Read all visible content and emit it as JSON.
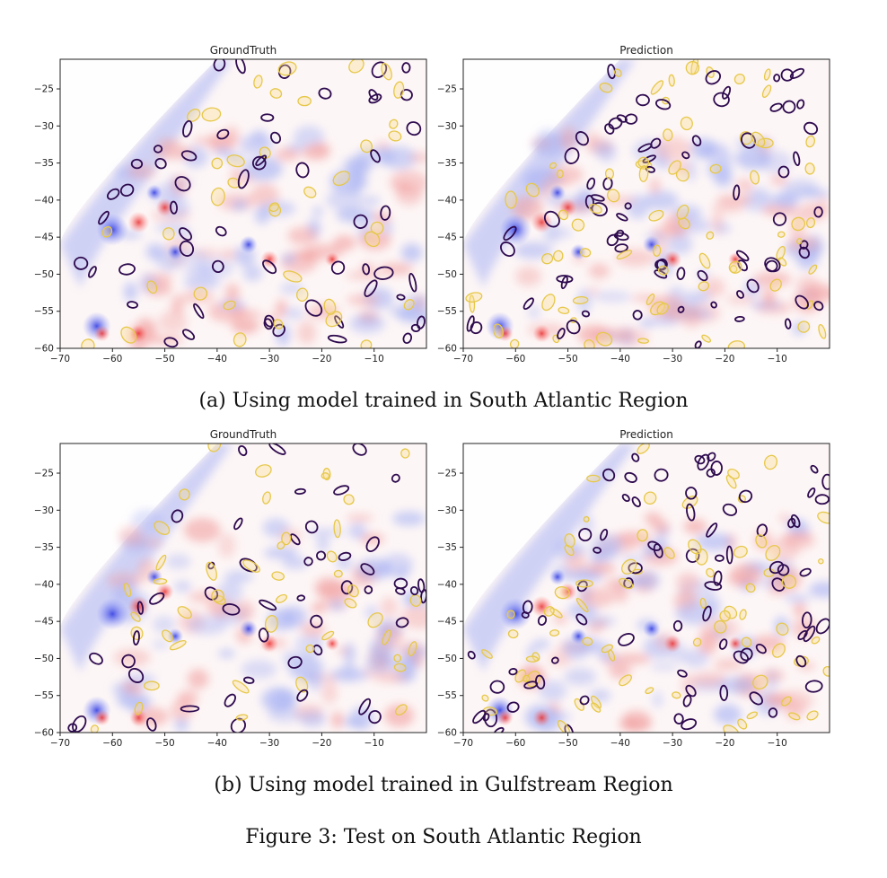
{
  "figure": {
    "subcaptions": [
      "(a) Using model trained in South Atlantic Region",
      "(b) Using model trained in Gulfstream Region"
    ],
    "caption": "Figure 3: Test on South Atlantic Region"
  },
  "chart_data": [
    {
      "type": "heatmap",
      "title": "GroundTruth",
      "xlabel": "",
      "ylabel": "",
      "xlim": [
        -70,
        0
      ],
      "ylim": [
        -60,
        -21
      ],
      "x_ticks": [
        -70,
        -60,
        -50,
        -40,
        -30,
        -20,
        -10
      ],
      "y_ticks": [
        -25,
        -30,
        -35,
        -40,
        -45,
        -50,
        -55,
        -60
      ],
      "contours": [
        "#2d0a4e",
        "#e6c84a"
      ],
      "colormap": [
        "#2233ee",
        "#ffffff",
        "#ee2222"
      ]
    },
    {
      "type": "heatmap",
      "title": "Prediction",
      "xlabel": "",
      "ylabel": "",
      "xlim": [
        -70,
        0
      ],
      "ylim": [
        -60,
        -21
      ],
      "x_ticks": [
        -70,
        -60,
        -50,
        -40,
        -30,
        -20,
        -10
      ],
      "y_ticks": [
        -25,
        -30,
        -35,
        -40,
        -45,
        -50,
        -55,
        -60
      ],
      "contours": [
        "#2d0a4e",
        "#e6c84a"
      ],
      "colormap": [
        "#2233ee",
        "#ffffff",
        "#ee2222"
      ]
    },
    {
      "type": "heatmap",
      "title": "GroundTruth",
      "xlabel": "",
      "ylabel": "",
      "xlim": [
        -70,
        0
      ],
      "ylim": [
        -60,
        -21
      ],
      "x_ticks": [
        -70,
        -60,
        -50,
        -40,
        -30,
        -20,
        -10
      ],
      "y_ticks": [
        -25,
        -30,
        -35,
        -40,
        -45,
        -50,
        -55,
        -60
      ],
      "contours": [
        "#2d0a4e",
        "#e6c84a"
      ],
      "colormap": [
        "#2233ee",
        "#ffffff",
        "#ee2222"
      ]
    },
    {
      "type": "heatmap",
      "title": "Prediction",
      "xlabel": "",
      "ylabel": "",
      "xlim": [
        -70,
        0
      ],
      "ylim": [
        -60,
        -21
      ],
      "x_ticks": [
        -70,
        -60,
        -50,
        -40,
        -30,
        -20,
        -10
      ],
      "y_ticks": [
        -25,
        -30,
        -35,
        -40,
        -45,
        -50,
        -55,
        -60
      ],
      "contours": [
        "#2d0a4e",
        "#e6c84a"
      ],
      "colormap": [
        "#2233ee",
        "#ffffff",
        "#ee2222"
      ]
    }
  ]
}
